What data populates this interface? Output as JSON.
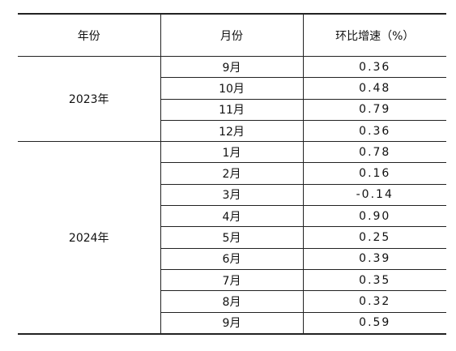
{
  "table": {
    "header": [
      "年份",
      "月份",
      "环比增速（%）"
    ],
    "groups": [
      {
        "year": "2023年",
        "rows": [
          [
            "9月",
            "0.36"
          ],
          [
            "10月",
            "0.48"
          ],
          [
            "11月",
            "0.79"
          ],
          [
            "12月",
            "0.36"
          ]
        ]
      },
      {
        "year": "2024年",
        "rows": [
          [
            "1月",
            "0.78"
          ],
          [
            "2月",
            "0.16"
          ],
          [
            "3月",
            "-0.14"
          ],
          [
            "4月",
            "0.90"
          ],
          [
            "5月",
            "0.25"
          ],
          [
            "6月",
            "0.39"
          ],
          [
            "7月",
            "0.35"
          ],
          [
            "8月",
            "0.32"
          ],
          [
            "9月",
            "0.59"
          ]
        ]
      }
    ]
  }
}
